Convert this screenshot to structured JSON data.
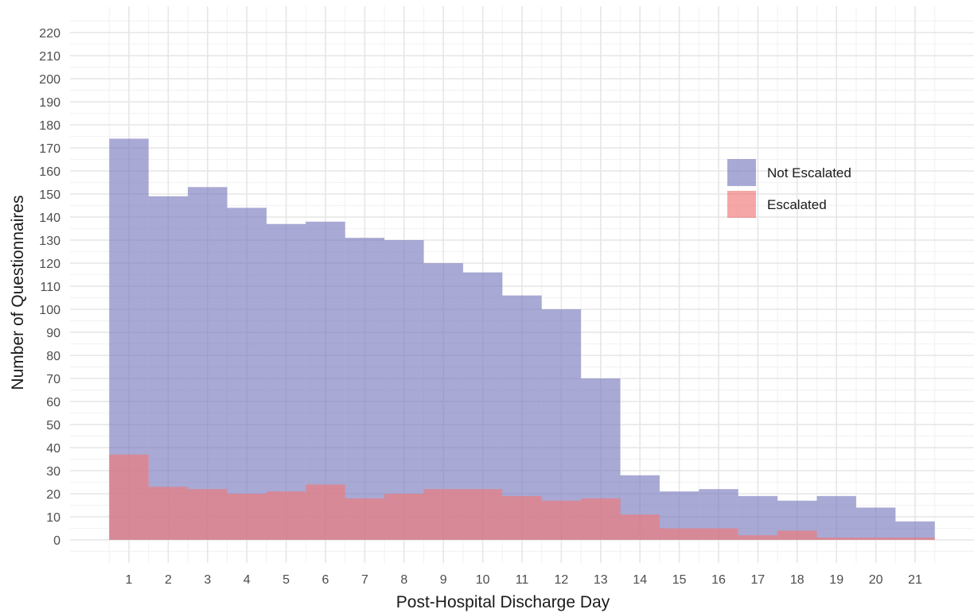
{
  "chart_data": {
    "type": "bar",
    "stacking": "overlay",
    "title": "",
    "xlabel": "Post-Hospital Discharge Day",
    "ylabel": "Number of Questionnaires",
    "categories": [
      "1",
      "2",
      "3",
      "4",
      "5",
      "6",
      "7",
      "8",
      "9",
      "10",
      "11",
      "12",
      "13",
      "14",
      "15",
      "16",
      "17",
      "18",
      "19",
      "20",
      "21"
    ],
    "yticks": [
      "0",
      "10",
      "20",
      "30",
      "40",
      "50",
      "60",
      "70",
      "80",
      "90",
      "100",
      "110",
      "120",
      "130",
      "140",
      "150",
      "160",
      "170",
      "180",
      "190",
      "200",
      "210",
      "220"
    ],
    "ylim": [
      -10,
      225
    ],
    "grid": true,
    "legend_position": "right",
    "series": [
      {
        "name": "Not Escalated",
        "color": "#7b7bbf",
        "values": [
          174,
          149,
          153,
          144,
          137,
          138,
          131,
          130,
          120,
          116,
          106,
          100,
          70,
          28,
          21,
          22,
          19,
          17,
          19,
          14,
          8
        ]
      },
      {
        "name": "Escalated",
        "color": "#f07878",
        "values": [
          37,
          23,
          22,
          20,
          21,
          24,
          18,
          20,
          22,
          22,
          19,
          17,
          18,
          11,
          5,
          5,
          2,
          4,
          1,
          1,
          1
        ]
      }
    ]
  }
}
